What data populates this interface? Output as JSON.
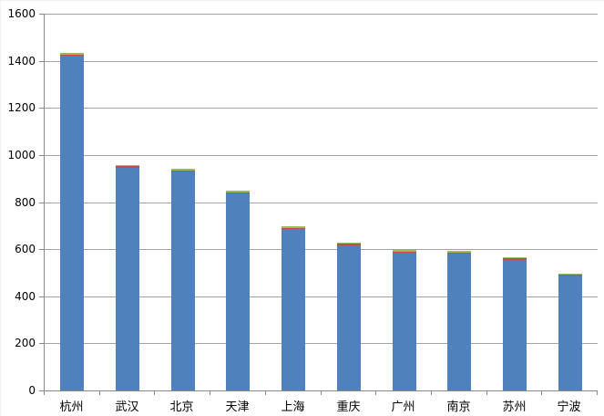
{
  "chart_data": {
    "type": "bar",
    "subtype": "stacked-column",
    "title": "",
    "xlabel": "",
    "ylabel": "",
    "ylim": [
      0,
      1600
    ],
    "y_tick_step": 200,
    "y_ticks": [
      0,
      200,
      400,
      600,
      800,
      1000,
      1200,
      1400,
      1600
    ],
    "grid": true,
    "legend": "none",
    "categories": [
      "杭州",
      "武汉",
      "北京",
      "天津",
      "上海",
      "重庆",
      "广州",
      "南京",
      "苏州",
      "宁波"
    ],
    "series": [
      {
        "name": "series-1-blue",
        "color": "#4F81BD",
        "values": [
          1420,
          945,
          928,
          835,
          685,
          615,
          585,
          582,
          553,
          487
        ]
      },
      {
        "name": "series-2-red",
        "color": "#C0504D",
        "values": [
          5,
          6,
          4,
          2,
          2,
          8,
          2,
          4,
          6,
          4
        ]
      },
      {
        "name": "series-3-green",
        "color": "#9BBB59",
        "values": [
          8,
          4,
          8,
          6,
          6,
          4,
          6,
          6,
          3,
          5
        ]
      }
    ],
    "totals": [
      1433,
      955,
      940,
      843,
      693,
      627,
      593,
      592,
      562,
      496
    ]
  },
  "colors": {
    "gridline": "#a3a3a3",
    "axis": "#898989",
    "text": "#000000",
    "background": "#ffffff"
  }
}
